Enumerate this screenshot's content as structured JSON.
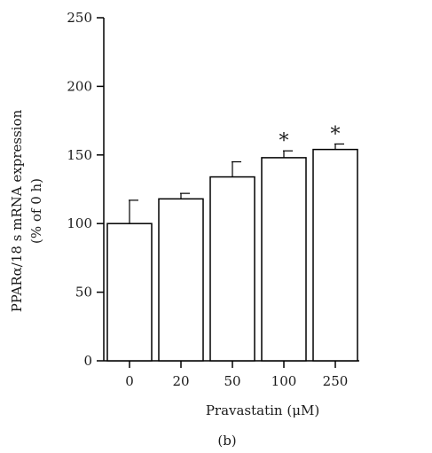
{
  "chart_data": {
    "type": "bar",
    "categories": [
      "0",
      "20",
      "50",
      "100",
      "250"
    ],
    "values": [
      100,
      118,
      134,
      148,
      154
    ],
    "errors": [
      17,
      4,
      11,
      5,
      4
    ],
    "significance": [
      "",
      "",
      "",
      "*",
      "*"
    ],
    "ylim": [
      0,
      250
    ],
    "yticks": [
      0,
      50,
      100,
      150,
      200,
      250
    ],
    "ylabel_line1": "PPARα/18 s mRNA expression",
    "ylabel_line2": "(% of 0 h)",
    "xlabel": "Pravastatin (μM)",
    "panel_label": "(b)",
    "grid": false,
    "bar_fill": "#ffffff",
    "bar_stroke": "#000000"
  }
}
